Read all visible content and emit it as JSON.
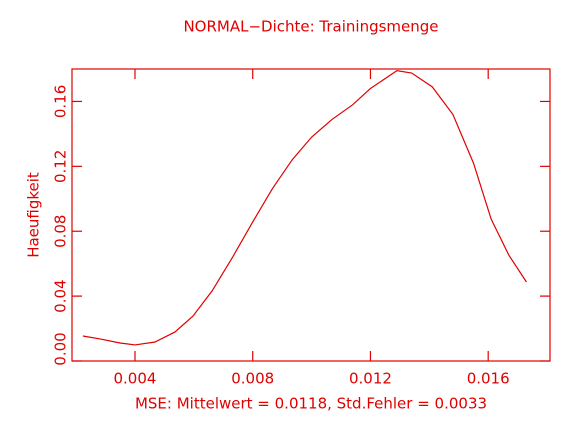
{
  "chart_data": {
    "type": "line",
    "title": "NORMAL−Dichte: Trainingsmenge",
    "x_label": "MSE: Mittelwert = 0.0118, Std.Fehler = 0.0033",
    "y_label": "Haeufigkeit",
    "color": "#e00000",
    "x": [
      0.00223,
      0.00281,
      0.00349,
      0.004,
      0.00468,
      0.00536,
      0.00597,
      0.00662,
      0.0073,
      0.008,
      0.00866,
      0.00934,
      0.01,
      0.0107,
      0.0114,
      0.012,
      0.0129,
      0.0134,
      0.0141,
      0.0148,
      0.0155,
      0.0161,
      0.0167,
      0.0173
    ],
    "values": [
      0.0154,
      0.0136,
      0.0111,
      0.0099,
      0.0117,
      0.0179,
      0.0277,
      0.0432,
      0.0635,
      0.0857,
      0.106,
      0.124,
      0.138,
      0.149,
      0.158,
      0.168,
      0.179,
      0.1775,
      0.169,
      0.152,
      0.122,
      0.0875,
      0.0653,
      0.0487
    ],
    "xlim": [
      0.00186,
      0.0181
    ],
    "ylim": [
      0,
      0.18
    ],
    "xticks": [
      0.004,
      0.008,
      0.012,
      0.016
    ],
    "yticks": [
      {
        "value": 0,
        "label": "0.00"
      },
      0.04,
      0.08,
      0.12,
      0.16
    ]
  }
}
